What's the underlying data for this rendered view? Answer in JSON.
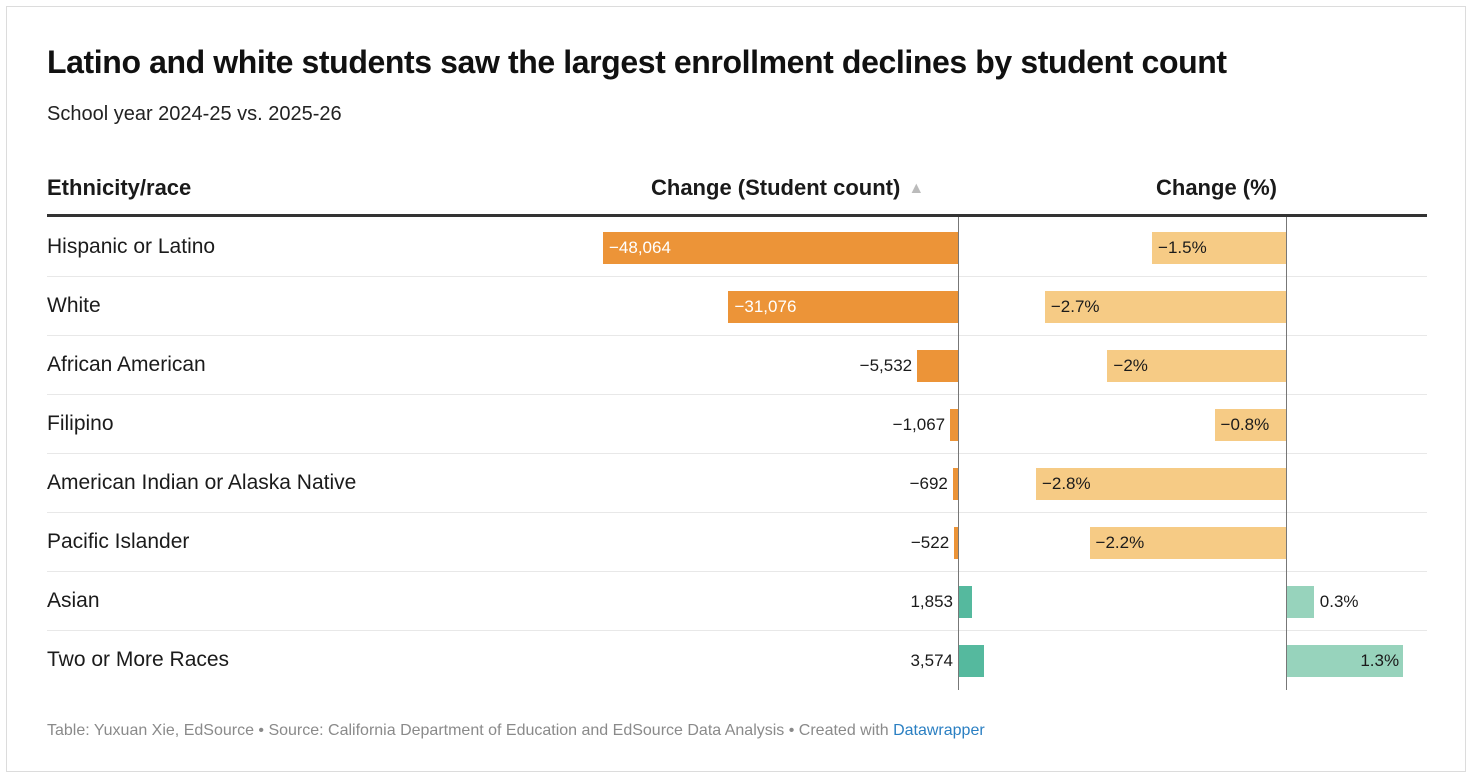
{
  "header": {
    "title": "Latino and white students saw the largest enrollment declines by student count",
    "subtitle": "School year 2024-25 vs. 2025-26"
  },
  "columns": {
    "ethnicity": "Ethnicity/race",
    "count": "Change (Student count)",
    "count_sort_icon": "▲",
    "percent": "Change (%)"
  },
  "colors": {
    "count_negative": "#ec9438",
    "count_positive": "#55b99e",
    "percent_negative": "#f6cb85",
    "percent_positive": "#97d3bc"
  },
  "chart_data": {
    "type": "table",
    "title": "Latino and white students saw the largest enrollment declines by student count",
    "subtitle": "School year 2024-25 vs. 2025-26",
    "columns": [
      "Ethnicity/race",
      "Change (Student count)",
      "Change (%)"
    ],
    "sorted_by": "Change (Student count) ascending",
    "rows": [
      {
        "label": "Hispanic or Latino",
        "count": -48064,
        "count_text": "−48,064",
        "pct": -1.5,
        "pct_text": "−1.5%"
      },
      {
        "label": "White",
        "count": -31076,
        "count_text": "−31,076",
        "pct": -2.7,
        "pct_text": "−2.7%"
      },
      {
        "label": "African American",
        "count": -5532,
        "count_text": "−5,532",
        "pct": -2.0,
        "pct_text": "−2%"
      },
      {
        "label": "Filipino",
        "count": -1067,
        "count_text": "−1,067",
        "pct": -0.8,
        "pct_text": "−0.8%"
      },
      {
        "label": "American Indian or Alaska Native",
        "count": -692,
        "count_text": "−692",
        "pct": -2.8,
        "pct_text": "−2.8%"
      },
      {
        "label": "Pacific Islander",
        "count": -522,
        "count_text": "−522",
        "pct": -2.2,
        "pct_text": "−2.2%"
      },
      {
        "label": "Asian",
        "count": 1853,
        "count_text": "1,853",
        "pct": 0.3,
        "pct_text": "0.3%"
      },
      {
        "label": "Two or More Races",
        "count": 3574,
        "count_text": "3,574",
        "pct": 1.3,
        "pct_text": "1.3%"
      }
    ],
    "count_range": [
      -48064,
      3574
    ],
    "pct_range": [
      -2.8,
      1.3
    ]
  },
  "footer": {
    "credit": "Table: Yuxuan Xie, EdSource • Source: California Department of Education and EdSource Data Analysis • Created with ",
    "link_text": "Datawrapper"
  }
}
